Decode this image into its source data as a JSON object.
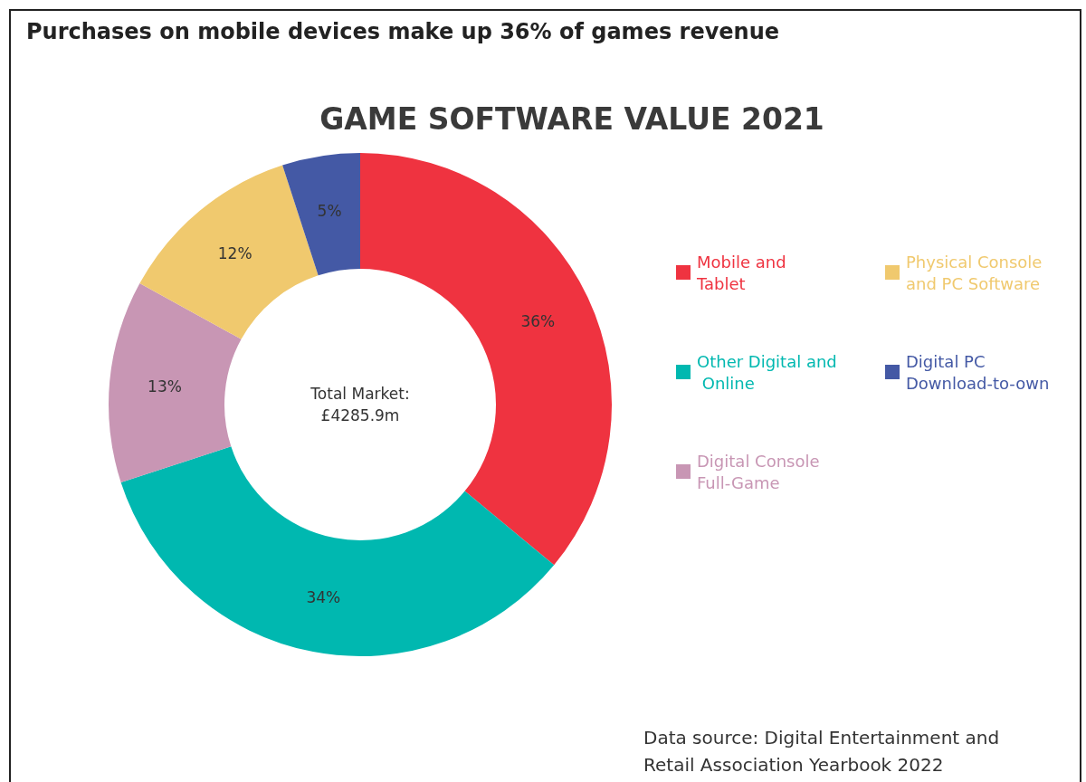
{
  "chart_data": {
    "type": "donut",
    "title": "Purchases on mobile devices make up 36% of games revenue",
    "subtitle": "GAME SOFTWARE VALUE 2021",
    "categories": [
      "Mobile and Tablet",
      "Other Digital and Online",
      "Digital Console Full-Game",
      "Physical Console and PC Software",
      "Digital PC Download-to-own"
    ],
    "values": [
      36,
      34,
      13,
      12,
      5
    ],
    "colors": [
      "#ef3340",
      "#00b8b0",
      "#c896b4",
      "#f0c96e",
      "#4459a5"
    ],
    "value_labels": [
      "36%",
      "34%",
      "13%",
      "12%",
      "5%"
    ],
    "legend": "right",
    "annotations": [
      "Total Market:\n£4285.9m",
      "Data source: Digital Entertainment and Retail Association Yearbook 2022"
    ]
  }
}
